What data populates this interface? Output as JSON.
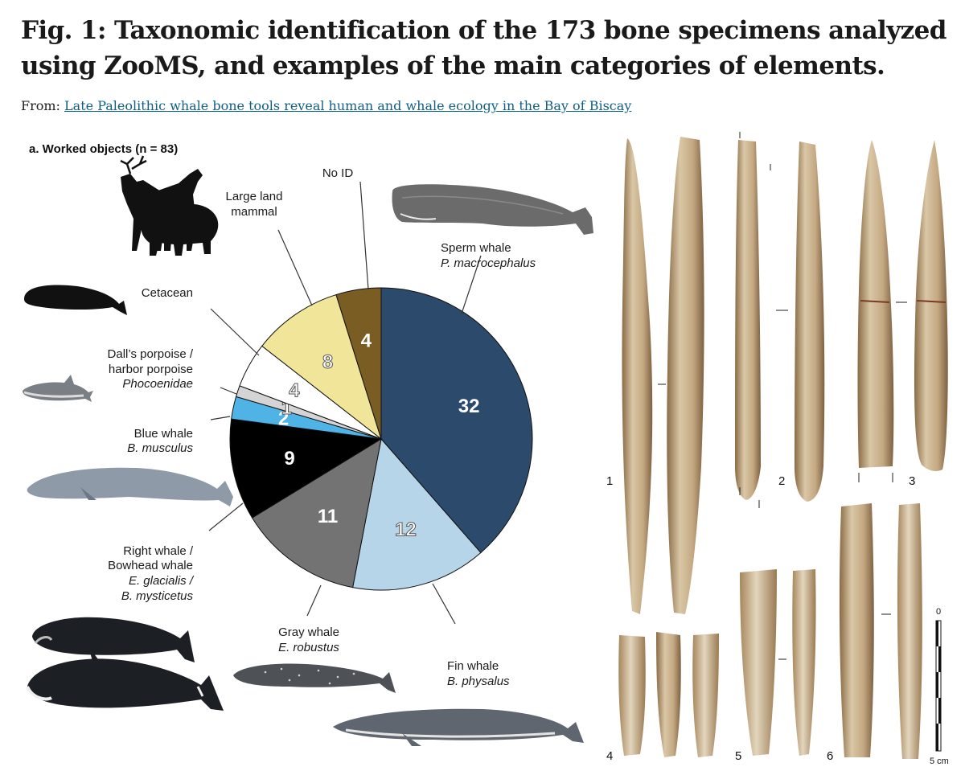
{
  "header": {
    "title": "Fig. 1: Taxonomic identification of the 173 bone specimens analyzed using ZooMS, and examples of the main categories of elements.",
    "from_label": "From:",
    "article_link": "Late Paleolithic whale bone tools reveal human and whale ecology in the Bay of Biscay"
  },
  "chart_data": {
    "type": "pie",
    "title": "a. Worked objects (n = 83)",
    "total": 83,
    "slices": [
      {
        "label": "Sperm whale",
        "latin": "P. macrocephalus",
        "value": 32,
        "color": "#2c4a6b",
        "text_color": "#ffffff"
      },
      {
        "label": "Fin whale",
        "latin": "B. physalus",
        "value": 12,
        "color": "#b7d5e8",
        "text_color": "#ffffff"
      },
      {
        "label": "Gray whale",
        "latin": "E. robustus",
        "value": 11,
        "color": "#737373",
        "text_color": "#ffffff"
      },
      {
        "label": "Right whale / Bowhead whale",
        "latin": "E. glacialis / B. mysticetus",
        "value": 9,
        "color": "#000000",
        "text_color": "#ffffff"
      },
      {
        "label": "Blue whale",
        "latin": "B. musculus",
        "value": 2,
        "color": "#4fb3e6",
        "text_color": "#ffffff"
      },
      {
        "label": "Dall's porpoise / harbor porpoise",
        "latin": "Phocoenidae",
        "value": 1,
        "color": "#d4d4d4",
        "text_color": "#ffffff"
      },
      {
        "label": "Cetacean",
        "latin": "",
        "value": 4,
        "color": "#ffffff",
        "text_color": "#ffffff"
      },
      {
        "label": "Large land mammal",
        "latin": "",
        "value": 8,
        "color": "#f1e59a",
        "text_color": "#ffffff"
      },
      {
        "label": "No ID",
        "latin": "",
        "value": 4,
        "color": "#7a5d22",
        "text_color": "#ffffff"
      }
    ],
    "legend_labels": {
      "sperm": [
        "Sperm whale",
        "P. macrocephalus"
      ],
      "fin": [
        "Fin whale",
        "B. physalus"
      ],
      "gray": [
        "Gray whale",
        "E. robustus"
      ],
      "right": [
        "Right whale /",
        "Bowhead whale",
        "E. glacialis /",
        "B. mysticetus"
      ],
      "blue": [
        "Blue whale",
        "B. musculus"
      ],
      "porpoise": [
        "Dall’s porpoise /",
        "harbor porpoise",
        "Phocoenidae"
      ],
      "cetacean": [
        "Cetacean"
      ],
      "land": [
        "Large land",
        "mammal"
      ],
      "noid": [
        "No ID"
      ]
    }
  },
  "tools": {
    "numbers": [
      "1",
      "2",
      "3",
      "4",
      "5",
      "6"
    ],
    "scale_top": "0",
    "scale_bottom": "5 cm"
  },
  "colors": {
    "bone_light": "#d9c7a6",
    "bone_mid": "#b89a6e",
    "bone_dark": "#8a6a44",
    "whale_blue": "#8e9aa8",
    "whale_gray": "#6e6e6e"
  }
}
